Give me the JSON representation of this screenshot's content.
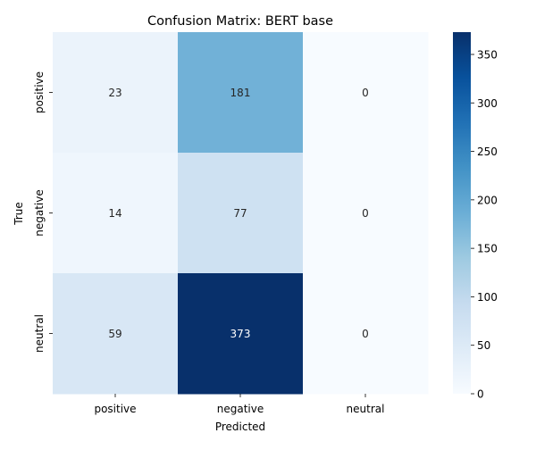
{
  "chart_data": {
    "type": "heatmap",
    "title": "Confusion Matrix: BERT base",
    "xlabel": "Predicted",
    "ylabel": "True",
    "x_categories": [
      "positive",
      "negative",
      "neutral"
    ],
    "y_categories": [
      "positive",
      "negative",
      "neutral"
    ],
    "values": [
      [
        23,
        181,
        0
      ],
      [
        14,
        77,
        0
      ],
      [
        59,
        373,
        0
      ]
    ],
    "colormap": "Blues",
    "colorbar": {
      "min": 0,
      "max": 373,
      "ticks": [
        0,
        50,
        100,
        150,
        200,
        250,
        300,
        350
      ]
    },
    "annotation_colors": {
      "dark_text": "#262626",
      "light_text": "#ffffff"
    }
  }
}
